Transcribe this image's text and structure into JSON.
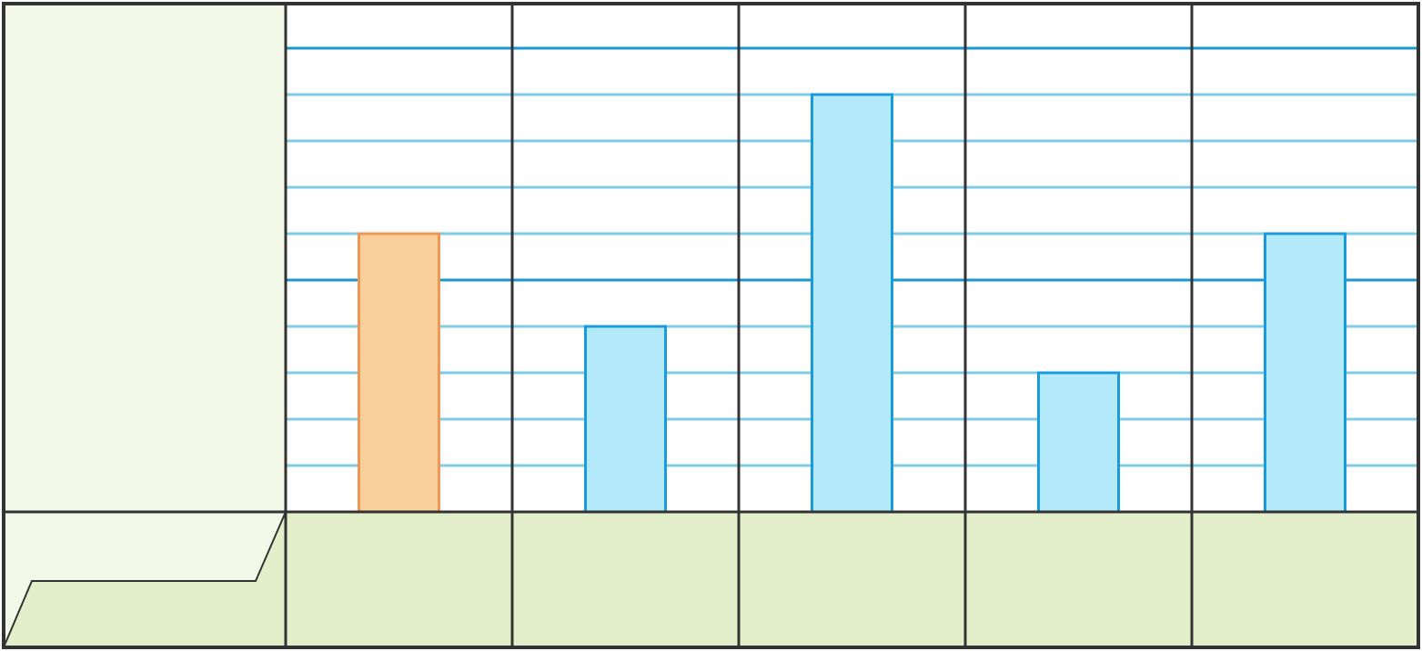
{
  "chart_data": {
    "type": "bar",
    "title": "",
    "xlabel": "",
    "ylabel": "",
    "categories": [
      "",
      "",
      "",
      "",
      ""
    ],
    "values": [
      6,
      4,
      9,
      3,
      6
    ],
    "ylim": [
      0,
      10
    ],
    "grid": true,
    "highlight_index": 0
  },
  "colors": {
    "frame": "#333333",
    "panel_light": "#f3f8e8",
    "panel_green": "#e3eecb",
    "grid_minor": "#80cbe6",
    "grid_major": "#1a96d2",
    "bar_fill": "#b4e9fa",
    "bar_stroke": "#1a9be0",
    "highlight_fill": "#f9cf9c",
    "highlight_stroke": "#ee9754"
  }
}
